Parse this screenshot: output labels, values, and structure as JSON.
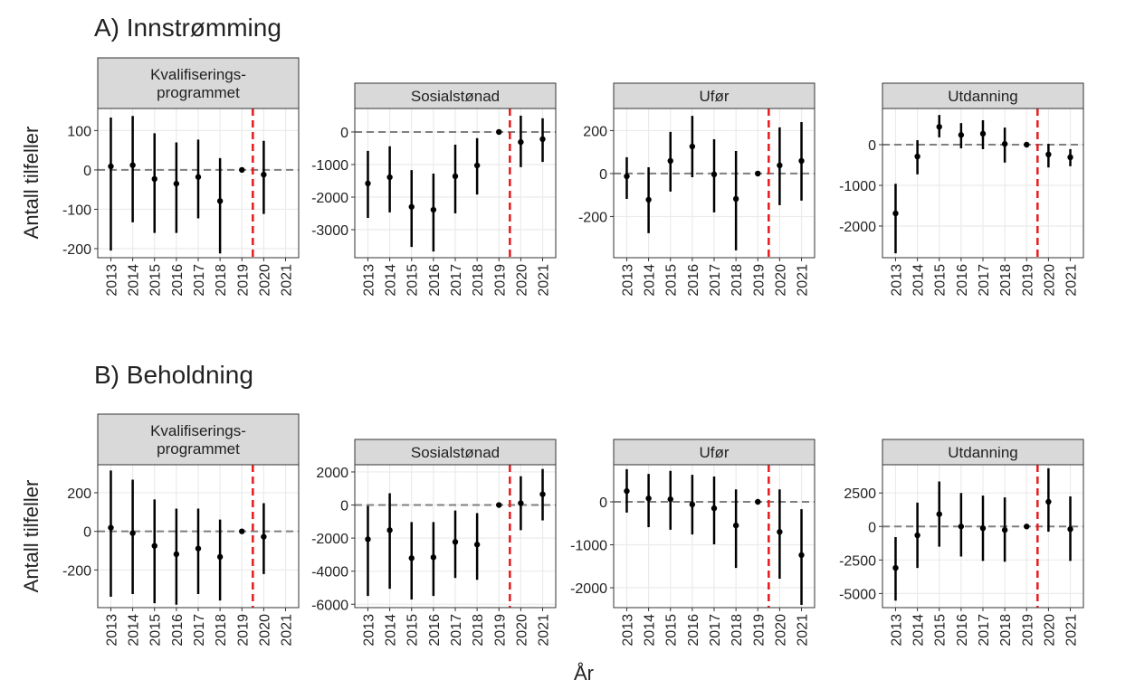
{
  "sections": [
    {
      "title": "A) Innstrømming",
      "ylabel": "Antall tilfeller"
    },
    {
      "title": "B) Beholdning",
      "ylabel": "Antall tilfeller"
    }
  ],
  "xlabel": "År",
  "chart_data": [
    {
      "type": "errorbar",
      "title": [
        "Kvalifiserings-",
        "programmet"
      ],
      "x": [
        2013,
        2014,
        2015,
        2016,
        2017,
        2018,
        2019,
        2020,
        2021
      ],
      "values": [
        9,
        12,
        -23,
        -35,
        -18,
        -79,
        0,
        -12,
        null
      ],
      "lower": [
        -205,
        -133,
        -160,
        -160,
        -123,
        -212,
        null,
        -112,
        null
      ],
      "upper": [
        133,
        137,
        93,
        70,
        77,
        30,
        null,
        74,
        null
      ],
      "xlim": [
        2012.4,
        2021.6
      ],
      "xticks": [
        2013,
        2014,
        2015,
        2016,
        2017,
        2018,
        2019,
        2020,
        2021
      ],
      "ylim": [
        -223,
        156
      ],
      "yticks": [
        -200,
        -100,
        0,
        100
      ],
      "hline": 0,
      "vline": 2019.5,
      "grid": true,
      "color": "#000000",
      "vline_color": "#e8191c"
    },
    {
      "type": "errorbar",
      "title": [
        "Sosialstønad"
      ],
      "x": [
        2013,
        2014,
        2015,
        2016,
        2017,
        2018,
        2019,
        2020,
        2021
      ],
      "values": [
        -1580,
        -1390,
        -2300,
        -2390,
        -1360,
        -1030,
        0,
        -310,
        -220
      ],
      "lower": [
        -2640,
        -2470,
        -3530,
        -3670,
        -2500,
        -1920,
        null,
        -1080,
        -920
      ],
      "upper": [
        -580,
        -440,
        -1170,
        -1280,
        -390,
        -190,
        null,
        500,
        420
      ],
      "xlim": [
        2012.4,
        2021.6
      ],
      "xticks": [
        2013,
        2014,
        2015,
        2016,
        2017,
        2018,
        2019,
        2020,
        2021
      ],
      "ylim": [
        -3860,
        720
      ],
      "yticks": [
        -3000,
        -2000,
        -1000,
        0
      ],
      "hline": 0,
      "vline": 2019.5,
      "grid": true,
      "color": "#000000",
      "vline_color": "#e8191c"
    },
    {
      "type": "errorbar",
      "title": [
        "Ufør"
      ],
      "x": [
        2013,
        2014,
        2015,
        2016,
        2017,
        2018,
        2019,
        2020,
        2021
      ],
      "values": [
        -13,
        -122,
        59,
        126,
        -4,
        -118,
        0,
        38,
        59
      ],
      "lower": [
        -118,
        -278,
        -84,
        -17,
        -181,
        -358,
        null,
        -147,
        -126
      ],
      "upper": [
        76,
        29,
        194,
        269,
        160,
        105,
        null,
        215,
        240
      ],
      "xlim": [
        2012.4,
        2021.6
      ],
      "xticks": [
        2013,
        2014,
        2015,
        2016,
        2017,
        2018,
        2019,
        2020,
        2021
      ],
      "ylim": [
        -392,
        303
      ],
      "yticks": [
        -200,
        0,
        200
      ],
      "hline": 0,
      "vline": 2019.5,
      "grid": true,
      "color": "#000000",
      "vline_color": "#e8191c"
    },
    {
      "type": "errorbar",
      "title": [
        "Utdanning"
      ],
      "x": [
        2013,
        2014,
        2015,
        2016,
        2017,
        2018,
        2019,
        2020,
        2021
      ],
      "values": [
        -1690,
        -290,
        440,
        240,
        270,
        20,
        0,
        -240,
        -310
      ],
      "lower": [
        -2670,
        -730,
        180,
        -90,
        -110,
        -440,
        null,
        -560,
        -530
      ],
      "upper": [
        -960,
        110,
        730,
        530,
        600,
        420,
        null,
        20,
        -110
      ],
      "xlim": [
        2012.4,
        2021.6
      ],
      "xticks": [
        2013,
        2014,
        2015,
        2016,
        2017,
        2018,
        2019,
        2020,
        2021
      ],
      "ylim": [
        -2778,
        889
      ],
      "yticks": [
        -2000,
        -1000,
        0
      ],
      "hline": 0,
      "vline": 2019.5,
      "grid": true,
      "color": "#000000",
      "vline_color": "#e8191c"
    },
    {
      "type": "errorbar",
      "title": [
        "Kvalifiserings-",
        "programmet"
      ],
      "x": [
        2013,
        2014,
        2015,
        2016,
        2017,
        2018,
        2019,
        2020,
        2021
      ],
      "values": [
        19,
        -9,
        -75,
        -118,
        -89,
        -132,
        0,
        -28,
        null
      ],
      "lower": [
        -339,
        -325,
        -372,
        -380,
        -325,
        -358,
        null,
        -221,
        null
      ],
      "upper": [
        315,
        268,
        165,
        118,
        118,
        61,
        null,
        146,
        null
      ],
      "xlim": [
        2012.4,
        2021.6
      ],
      "xticks": [
        2013,
        2014,
        2015,
        2016,
        2017,
        2018,
        2019,
        2020,
        2021
      ],
      "ylim": [
        -395,
        345
      ],
      "yticks": [
        -200,
        0,
        200
      ],
      "hline": 0,
      "vline": 2019.5,
      "grid": true,
      "color": "#000000",
      "vline_color": "#e8191c"
    },
    {
      "type": "errorbar",
      "title": [
        "Sosialstønad"
      ],
      "x": [
        2013,
        2014,
        2015,
        2016,
        2017,
        2018,
        2019,
        2020,
        2021
      ],
      "values": [
        -2070,
        -1520,
        -3210,
        -3160,
        -2230,
        -2390,
        0,
        110,
        650
      ],
      "lower": [
        -5500,
        -5060,
        -5710,
        -5500,
        -4410,
        -4520,
        null,
        -1520,
        -930
      ],
      "upper": [
        -50,
        710,
        -1030,
        -1030,
        -330,
        -490,
        null,
        1740,
        2180
      ],
      "xlim": [
        2012.4,
        2021.6
      ],
      "xticks": [
        2013,
        2014,
        2015,
        2016,
        2017,
        2018,
        2019,
        2020,
        2021
      ],
      "ylim": [
        -6204,
        2435
      ],
      "yticks": [
        -6000,
        -4000,
        -2000,
        0,
        2000
      ],
      "hline": 0,
      "vline": 2019.5,
      "grid": true,
      "color": "#000000",
      "vline_color": "#e8191c"
    },
    {
      "type": "errorbar",
      "title": [
        "Ufør"
      ],
      "x": [
        2013,
        2014,
        2015,
        2016,
        2017,
        2018,
        2019,
        2020,
        2021
      ],
      "values": [
        250,
        80,
        60,
        -60,
        -150,
        -550,
        0,
        -700,
        -1240
      ],
      "lower": [
        -250,
        -590,
        -650,
        -760,
        -990,
        -1540,
        null,
        -1790,
        -2400
      ],
      "upper": [
        760,
        650,
        720,
        630,
        590,
        290,
        null,
        290,
        -170
      ],
      "xlim": [
        2012.4,
        2021.6
      ],
      "xticks": [
        2013,
        2014,
        2015,
        2016,
        2017,
        2018,
        2019,
        2020,
        2021
      ],
      "ylim": [
        -2463,
        863
      ],
      "yticks": [
        -2000,
        -1000,
        0
      ],
      "hline": 0,
      "vline": 2019.5,
      "grid": true,
      "color": "#000000",
      "vline_color": "#e8191c"
    },
    {
      "type": "errorbar",
      "title": [
        "Utdanning"
      ],
      "x": [
        2013,
        2014,
        2015,
        2016,
        2017,
        2018,
        2019,
        2020,
        2021
      ],
      "values": [
        -3090,
        -660,
        920,
        0,
        -130,
        -260,
        0,
        1840,
        -200
      ],
      "lower": [
        -5530,
        -3090,
        -1510,
        -2240,
        -2570,
        -2630,
        null,
        -390,
        -2570
      ],
      "upper": [
        -790,
        1780,
        3360,
        2500,
        2300,
        2170,
        null,
        4340,
        2240
      ],
      "xlim": [
        2012.4,
        2021.6
      ],
      "xticks": [
        2013,
        2014,
        2015,
        2016,
        2017,
        2018,
        2019,
        2020,
        2021
      ],
      "ylim": [
        -6053,
        4605
      ],
      "yticks": [
        -5000,
        -2500,
        0,
        2500
      ],
      "hline": 0,
      "vline": 2019.5,
      "grid": true,
      "color": "#000000",
      "vline_color": "#e8191c"
    }
  ]
}
